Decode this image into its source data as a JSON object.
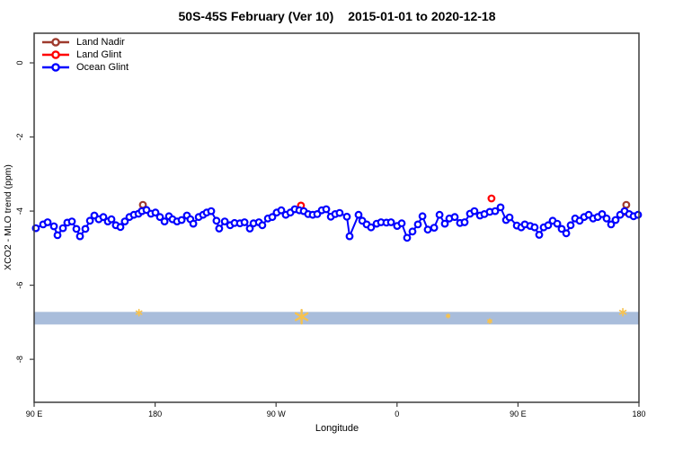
{
  "title": {
    "main": "50S-45S February (Ver 10)",
    "dates": "2015-01-01 to 2020-12-18"
  },
  "chart_data": {
    "type": "line",
    "title": "50S-45S February (Ver 10)  2015-01-01 to 2020-12-18",
    "xlabel": "Longitude",
    "ylabel": "XCO2 - MLO trend (ppm)",
    "xlim": [
      -270,
      180
    ],
    "ylim": [
      -9.16,
      0.8
    ],
    "grid": false,
    "legend_position": "top-left",
    "x_ticks": [
      {
        "x": -270,
        "label": "90 E"
      },
      {
        "x": -180,
        "label": "180"
      },
      {
        "x": -90,
        "label": "90 W"
      },
      {
        "x": 0,
        "label": "0"
      },
      {
        "x": 90,
        "label": "90 E"
      },
      {
        "x": 180,
        "label": "180"
      }
    ],
    "y_ticks": [
      {
        "y": 0,
        "label": "0"
      },
      {
        "y": -2,
        "label": "-2"
      },
      {
        "y": -4,
        "label": "-4"
      },
      {
        "y": -6,
        "label": "-6"
      },
      {
        "y": -8,
        "label": "-8"
      }
    ],
    "legend": [
      {
        "label": "Land Nadir",
        "color": "#9E3A2D"
      },
      {
        "label": "Land Glint",
        "color": "#FF0000"
      },
      {
        "label": "Ocean Glint",
        "color": "#0000FF"
      }
    ],
    "band": {
      "top": -6.72,
      "bottom": -7.06,
      "color": "#A9BDDB"
    },
    "star_marks": {
      "color": "#F7C24E",
      "points": [
        {
          "x": -192,
          "y": -6.74,
          "size": 7
        },
        {
          "x": -71,
          "y": -6.85,
          "size": 15
        },
        {
          "x": 38,
          "y": -6.83,
          "size": 4
        },
        {
          "x": 69,
          "y": -6.97,
          "size": 5
        },
        {
          "x": 168,
          "y": -6.73,
          "size": 8
        }
      ]
    },
    "series": [
      {
        "name": "Land Nadir",
        "color": "#9E3A2D",
        "marker": "open-circle",
        "line": false,
        "points": [
          [
            -189.1,
            -3.83
          ],
          [
            170.6,
            -3.83
          ]
        ]
      },
      {
        "name": "Land Glint",
        "color": "#FF0000",
        "marker": "open-circle",
        "line": false,
        "points": [
          [
            -189.8,
            -4.0
          ],
          [
            -71.5,
            -3.85
          ],
          [
            70.3,
            -3.66
          ],
          [
            169.3,
            -4.02
          ]
        ]
      },
      {
        "name": "Ocean Glint",
        "color": "#0000FF",
        "marker": "open-circle",
        "line": true,
        "points": [
          [
            -268.7,
            -4.46
          ],
          [
            -263.3,
            -4.36
          ],
          [
            -260.0,
            -4.3
          ],
          [
            -255.3,
            -4.41
          ],
          [
            -252.6,
            -4.65
          ],
          [
            -248.6,
            -4.46
          ],
          [
            -245.3,
            -4.31
          ],
          [
            -241.9,
            -4.28
          ],
          [
            -238.6,
            -4.48
          ],
          [
            -235.9,
            -4.68
          ],
          [
            -231.9,
            -4.48
          ],
          [
            -228.5,
            -4.26
          ],
          [
            -225.2,
            -4.12
          ],
          [
            -221.9,
            -4.22
          ],
          [
            -218.5,
            -4.16
          ],
          [
            -215.2,
            -4.28
          ],
          [
            -212.5,
            -4.22
          ],
          [
            -209.2,
            -4.38
          ],
          [
            -205.8,
            -4.43
          ],
          [
            -202.5,
            -4.28
          ],
          [
            -199.1,
            -4.16
          ],
          [
            -195.8,
            -4.1
          ],
          [
            -192.4,
            -4.07
          ],
          [
            -189.8,
            -4.0
          ],
          [
            -186.4,
            -3.97
          ],
          [
            -183.1,
            -4.07
          ],
          [
            -179.7,
            -4.04
          ],
          [
            -176.4,
            -4.16
          ],
          [
            -173.0,
            -4.28
          ],
          [
            -169.7,
            -4.14
          ],
          [
            -167.0,
            -4.22
          ],
          [
            -163.7,
            -4.28
          ],
          [
            -160.3,
            -4.24
          ],
          [
            -156.3,
            -4.12
          ],
          [
            -153.7,
            -4.22
          ],
          [
            -151.6,
            -4.34
          ],
          [
            -147.6,
            -4.16
          ],
          [
            -144.3,
            -4.1
          ],
          [
            -141.6,
            -4.04
          ],
          [
            -138.3,
            -4.0
          ],
          [
            -134.3,
            -4.26
          ],
          [
            -132.3,
            -4.47
          ],
          [
            -128.2,
            -4.28
          ],
          [
            -124.2,
            -4.38
          ],
          [
            -120.9,
            -4.32
          ],
          [
            -116.9,
            -4.33
          ],
          [
            -113.5,
            -4.3
          ],
          [
            -109.5,
            -4.47
          ],
          [
            -106.8,
            -4.33
          ],
          [
            -102.8,
            -4.3
          ],
          [
            -100.2,
            -4.38
          ],
          [
            -96.1,
            -4.2
          ],
          [
            -92.8,
            -4.16
          ],
          [
            -89.5,
            -4.04
          ],
          [
            -86.1,
            -3.98
          ],
          [
            -82.8,
            -4.1
          ],
          [
            -79.4,
            -4.04
          ],
          [
            -76.1,
            -3.95
          ],
          [
            -72.7,
            -3.98
          ],
          [
            -69.4,
            -4.0
          ],
          [
            -66.1,
            -4.08
          ],
          [
            -62.7,
            -4.1
          ],
          [
            -59.4,
            -4.08
          ],
          [
            -56.0,
            -3.98
          ],
          [
            -52.7,
            -3.95
          ],
          [
            -49.3,
            -4.15
          ],
          [
            -46.0,
            -4.08
          ],
          [
            -42.7,
            -4.05
          ],
          [
            -37.3,
            -4.15
          ],
          [
            -35.3,
            -4.68
          ],
          [
            -28.6,
            -4.1
          ],
          [
            -25.9,
            -4.26
          ],
          [
            -22.6,
            -4.36
          ],
          [
            -19.3,
            -4.44
          ],
          [
            -15.2,
            -4.34
          ],
          [
            -11.9,
            -4.3
          ],
          [
            -7.9,
            -4.31
          ],
          [
            -4.5,
            -4.3
          ],
          [
            0.1,
            -4.4
          ],
          [
            3.5,
            -4.33
          ],
          [
            7.5,
            -4.72
          ],
          [
            11.5,
            -4.55
          ],
          [
            15.5,
            -4.36
          ],
          [
            18.9,
            -4.14
          ],
          [
            22.9,
            -4.5
          ],
          [
            27.6,
            -4.45
          ],
          [
            31.6,
            -4.1
          ],
          [
            35.6,
            -4.34
          ],
          [
            38.9,
            -4.2
          ],
          [
            42.9,
            -4.16
          ],
          [
            46.9,
            -4.32
          ],
          [
            50.3,
            -4.3
          ],
          [
            54.3,
            -4.07
          ],
          [
            57.6,
            -4.0
          ],
          [
            61.7,
            -4.12
          ],
          [
            65.0,
            -4.08
          ],
          [
            69.0,
            -4.02
          ],
          [
            73.0,
            -4.0
          ],
          [
            77.0,
            -3.9
          ],
          [
            81.1,
            -4.24
          ],
          [
            83.7,
            -4.17
          ],
          [
            89.1,
            -4.39
          ],
          [
            92.4,
            -4.44
          ],
          [
            95.1,
            -4.36
          ],
          [
            99.1,
            -4.4
          ],
          [
            102.4,
            -4.44
          ],
          [
            105.8,
            -4.64
          ],
          [
            109.1,
            -4.44
          ],
          [
            112.5,
            -4.38
          ],
          [
            115.8,
            -4.26
          ],
          [
            119.2,
            -4.34
          ],
          [
            122.5,
            -4.48
          ],
          [
            125.9,
            -4.6
          ],
          [
            129.2,
            -4.38
          ],
          [
            132.5,
            -4.2
          ],
          [
            135.9,
            -4.26
          ],
          [
            139.2,
            -4.16
          ],
          [
            142.6,
            -4.1
          ],
          [
            145.9,
            -4.2
          ],
          [
            149.3,
            -4.16
          ],
          [
            152.6,
            -4.08
          ],
          [
            155.9,
            -4.2
          ],
          [
            159.3,
            -4.36
          ],
          [
            162.6,
            -4.24
          ],
          [
            166.0,
            -4.1
          ],
          [
            169.3,
            -4.0
          ],
          [
            172.7,
            -4.08
          ],
          [
            176.0,
            -4.14
          ],
          [
            179.3,
            -4.1
          ]
        ]
      }
    ],
    "colors": {
      "axis": "#3C3C3C",
      "background": "#FFFFFF"
    }
  }
}
